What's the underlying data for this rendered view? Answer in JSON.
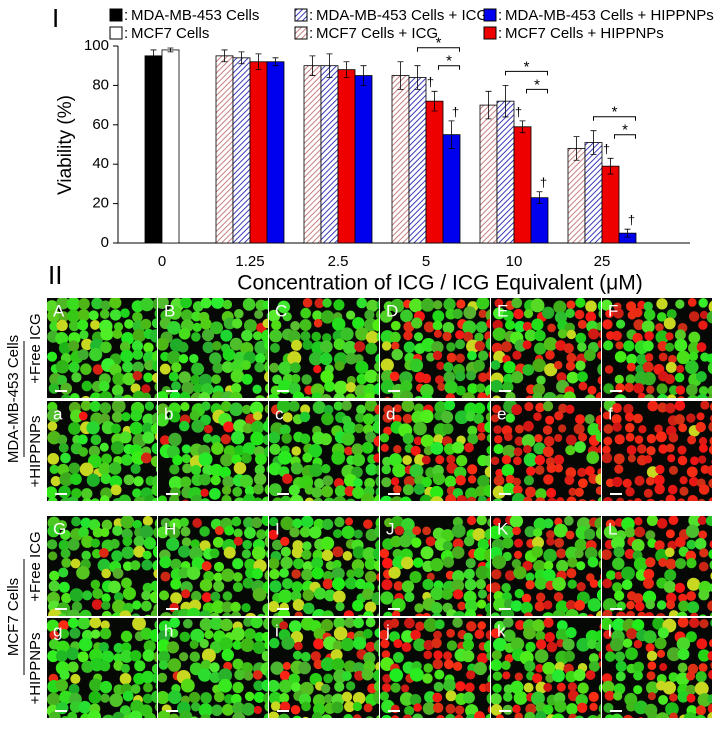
{
  "chart_data": {
    "type": "bar",
    "panel_label": "I",
    "xlabel": "Concentration of ICG / ICG Equivalent (μM)",
    "ylabel": "Viability (%)",
    "categories": [
      "0",
      "1.25",
      "2.5",
      "5",
      "10",
      "25"
    ],
    "ylim": [
      0,
      100
    ],
    "yticks": [
      0,
      20,
      40,
      60,
      80,
      100
    ],
    "legend_separator": ":",
    "star_label": "*",
    "dagger_label": "†",
    "series": [
      {
        "name": "MDA-MB-453 Cells",
        "color": "#000000",
        "hatch": false,
        "values": [
          95,
          null,
          null,
          null,
          null,
          null
        ],
        "errors": [
          3,
          null,
          null,
          null,
          null,
          null
        ]
      },
      {
        "name": "MDA-MB-453 Cells + ICG",
        "color": "#3a3ab8",
        "hatch": true,
        "values": [
          null,
          94,
          90,
          84,
          72,
          51
        ],
        "errors": [
          null,
          3,
          6,
          6,
          8,
          6
        ]
      },
      {
        "name": "MDA-MB-453 Cells + HIPPNPs",
        "color": "#0000ee",
        "hatch": false,
        "values": [
          null,
          92,
          85,
          55,
          23,
          5
        ],
        "errors": [
          null,
          2,
          5,
          7,
          3,
          2
        ]
      },
      {
        "name": "MCF7 Cells",
        "color": "#ffffff",
        "hatch": false,
        "values": [
          98,
          null,
          null,
          null,
          null,
          null
        ],
        "errors": [
          1,
          null,
          null,
          null,
          null,
          null
        ]
      },
      {
        "name": "MCF7 Cells + ICG",
        "color": "#c88080",
        "hatch": true,
        "values": [
          null,
          95,
          90,
          85,
          70,
          48
        ],
        "errors": [
          null,
          3,
          5,
          7,
          7,
          6
        ]
      },
      {
        "name": "MCF7 Cells + HIPPNPs",
        "color": "#ee0000",
        "hatch": false,
        "values": [
          null,
          92,
          88,
          72,
          59,
          39
        ],
        "errors": [
          null,
          4,
          4,
          5,
          3,
          4
        ]
      }
    ]
  },
  "micrographs": {
    "panel_label": "II",
    "groups": [
      {
        "cell_line": "MDA-MB-453 Cells",
        "rows": [
          {
            "treatment": "+Free ICG",
            "letters": [
              "A",
              "B",
              "C",
              "D",
              "E",
              "F"
            ]
          },
          {
            "treatment": "+HIPPNPs",
            "letters": [
              "a",
              "b",
              "c",
              "d",
              "e",
              "f"
            ]
          }
        ]
      },
      {
        "cell_line": "MCF7 Cells",
        "rows": [
          {
            "treatment": "+Free ICG",
            "letters": [
              "G",
              "H",
              "I",
              "J",
              "K",
              "L"
            ]
          },
          {
            "treatment": "+HIPPNPs",
            "letters": [
              "g",
              "h",
              "i",
              "j",
              "k",
              "l"
            ]
          }
        ]
      }
    ]
  }
}
